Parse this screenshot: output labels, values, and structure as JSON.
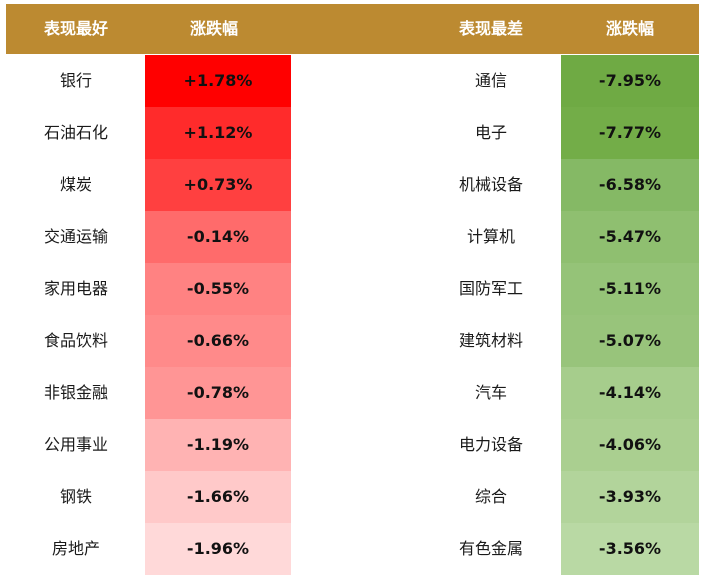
{
  "colors": {
    "header": "#bc8a31",
    "up": [
      "#ff0000",
      "#ff2b2b",
      "#ff4040",
      "#ff6b6b",
      "#ff8282",
      "#ff8a8a",
      "#ff9595",
      "#ffb3b3",
      "#ffc9c9",
      "#ffd9d9"
    ],
    "down": [
      "#6faa44",
      "#73ad48",
      "#85b965",
      "#8fbf70",
      "#95c378",
      "#98c47b",
      "#a6cd8c",
      "#aacf90",
      "#b2d49b",
      "#b9d9a4"
    ]
  },
  "chart_data": {
    "type": "table",
    "columns": [
      "表现最好",
      "涨跌幅",
      "表现最差",
      "涨跌幅"
    ],
    "best": [
      {
        "name": "银行",
        "change": "+1.78%"
      },
      {
        "name": "石油石化",
        "change": "+1.12%"
      },
      {
        "name": "煤炭",
        "change": "+0.73%"
      },
      {
        "name": "交通运输",
        "change": "-0.14%"
      },
      {
        "name": "家用电器",
        "change": "-0.55%"
      },
      {
        "name": "食品饮料",
        "change": "-0.66%"
      },
      {
        "name": "非银金融",
        "change": "-0.78%"
      },
      {
        "name": "公用事业",
        "change": "-1.19%"
      },
      {
        "name": "钢铁",
        "change": "-1.66%"
      },
      {
        "name": "房地产",
        "change": "-1.96%"
      }
    ],
    "worst": [
      {
        "name": "通信",
        "change": "-7.95%"
      },
      {
        "name": "电子",
        "change": "-7.77%"
      },
      {
        "name": "机械设备",
        "change": "-6.58%"
      },
      {
        "name": "计算机",
        "change": "-5.47%"
      },
      {
        "name": "国防军工",
        "change": "-5.11%"
      },
      {
        "name": "建筑材料",
        "change": "-5.07%"
      },
      {
        "name": "汽车",
        "change": "-4.14%"
      },
      {
        "name": "电力设备",
        "change": "-4.06%"
      },
      {
        "name": "综合",
        "change": "-3.93%"
      },
      {
        "name": "有色金属",
        "change": "-3.56%"
      }
    ]
  }
}
